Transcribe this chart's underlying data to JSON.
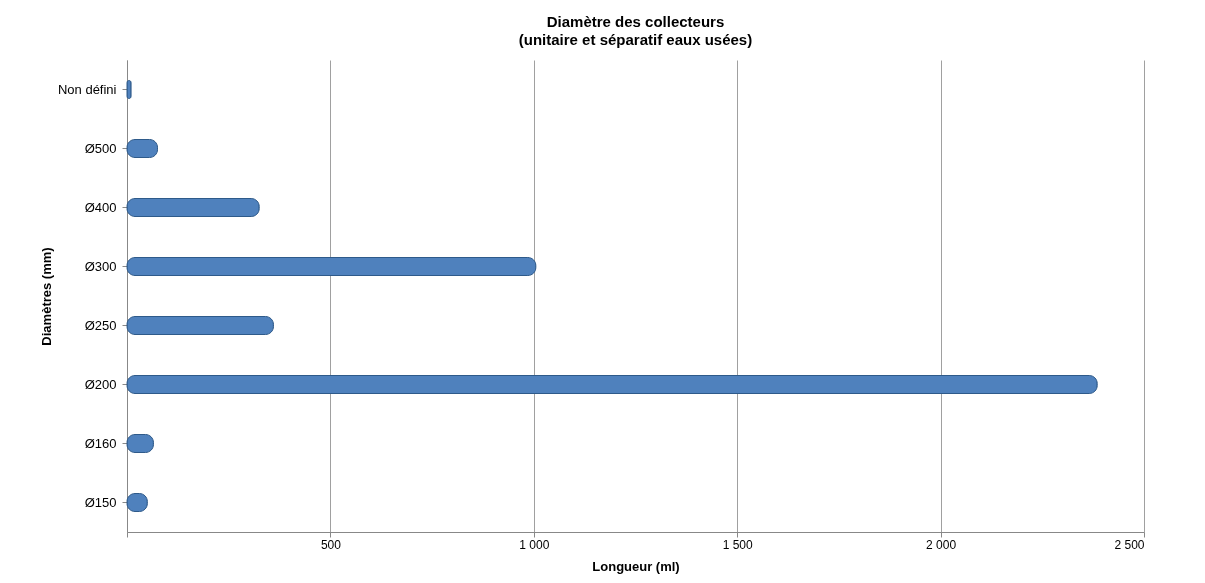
{
  "chart_data": {
    "type": "bar",
    "orientation": "horizontal",
    "title": "Diamètre des collecteurs",
    "subtitle": "(unitaire et séparatif eaux usées)",
    "xlabel": "Longueur (ml)",
    "ylabel": "Diamètres (mm)",
    "categories": [
      "Non défini",
      "Ø500",
      "Ø400",
      "Ø300",
      "Ø250",
      "Ø200",
      "Ø160",
      "Ø150"
    ],
    "values": [
      10,
      75,
      325,
      1005,
      360,
      2385,
      65,
      50
    ],
    "color": "#4f81bd",
    "xlim": [
      0,
      2500
    ],
    "xticks": [
      {
        "value": 0,
        "label": null
      },
      500,
      {
        "value": 1000,
        "label": "1 000"
      },
      {
        "value": 1500,
        "label": "1 500"
      },
      {
        "value": 2000,
        "label": "2 000"
      },
      {
        "value": 2500,
        "label": "2 500"
      }
    ],
    "grid": "x"
  }
}
